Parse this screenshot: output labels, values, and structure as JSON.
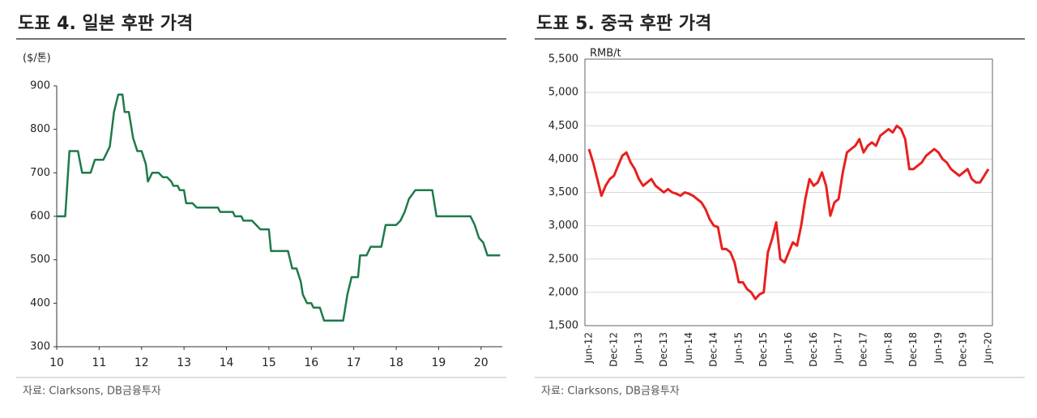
{
  "chart_data": [
    {
      "type": "line",
      "title": "도표 4. 일본 후판 가격",
      "y_label": "($/톤)",
      "source": "자료: Clarksons, DB금융투자",
      "xlim": [
        10,
        20.5
      ],
      "xticks": [
        10,
        11,
        12,
        13,
        14,
        15,
        16,
        17,
        18,
        19,
        20
      ],
      "ylim": [
        300,
        900
      ],
      "yticks": [
        300,
        400,
        500,
        600,
        700,
        800,
        900
      ],
      "grid": false,
      "series": [
        {
          "name": null,
          "color": "#1e7a4a",
          "x": [
            10,
            10.2,
            10.3,
            10.5,
            10.6,
            10.8,
            10.9,
            11.1,
            11.25,
            11.35,
            11.45,
            11.55,
            11.6,
            11.7,
            11.8,
            11.9,
            12.0,
            12.1,
            12.15,
            12.25,
            12.4,
            12.5,
            12.6,
            12.7,
            12.75,
            12.85,
            12.9,
            13.0,
            13.05,
            13.2,
            13.3,
            13.5,
            13.8,
            13.85,
            14.15,
            14.2,
            14.35,
            14.4,
            14.6,
            14.7,
            14.8,
            15.0,
            15.05,
            15.45,
            15.55,
            15.65,
            15.75,
            15.8,
            15.9,
            16.0,
            16.05,
            16.2,
            16.3,
            16.75,
            16.85,
            16.95,
            17.1,
            17.15,
            17.3,
            17.4,
            17.65,
            17.75,
            18.0,
            18.1,
            18.2,
            18.3,
            18.45,
            18.85,
            18.95,
            19.75,
            19.85,
            19.95,
            20.05,
            20.15,
            20.45
          ],
          "values": [
            600,
            600,
            750,
            750,
            700,
            700,
            730,
            730,
            760,
            840,
            880,
            880,
            840,
            840,
            780,
            750,
            750,
            720,
            680,
            700,
            700,
            690,
            690,
            680,
            670,
            670,
            660,
            660,
            630,
            630,
            620,
            620,
            620,
            610,
            610,
            600,
            600,
            590,
            590,
            580,
            570,
            570,
            520,
            520,
            480,
            480,
            450,
            420,
            400,
            400,
            390,
            390,
            360,
            360,
            420,
            460,
            460,
            510,
            510,
            530,
            530,
            580,
            580,
            590,
            610,
            640,
            660,
            660,
            600,
            600,
            580,
            550,
            540,
            510,
            510
          ]
        }
      ]
    },
    {
      "type": "line",
      "title": "도표 5. 중국 후판 가격",
      "y_label": "RMB/t",
      "source": "자료: Clarksons, DB금융투자",
      "categories": [
        "Jun-12",
        null,
        null,
        null,
        null,
        null,
        "Dec-12",
        null,
        null,
        null,
        null,
        null,
        "Jun-13",
        null,
        null,
        null,
        null,
        null,
        "Dec-13",
        null,
        null,
        null,
        null,
        null,
        "Jun-14",
        null,
        null,
        null,
        null,
        null,
        "Dec-14",
        null,
        null,
        null,
        null,
        null,
        "Jun-15",
        null,
        null,
        null,
        null,
        null,
        "Dec-15",
        null,
        null,
        null,
        null,
        null,
        "Jun-16",
        null,
        null,
        null,
        null,
        null,
        "Dec-16",
        null,
        null,
        null,
        null,
        null,
        "Jun-17",
        null,
        null,
        null,
        null,
        null,
        "Dec-17",
        null,
        null,
        null,
        null,
        null,
        "Jun-18",
        null,
        null,
        null,
        null,
        null,
        "Dec-18",
        null,
        null,
        null,
        null,
        null,
        "Jun-19",
        null,
        null,
        null,
        null,
        null,
        "Dec-19",
        null,
        null,
        null,
        null,
        null,
        "Jun-20"
      ],
      "ylim": [
        1500,
        5500
      ],
      "yticks": [
        {
          "value": 1500,
          "label": "1,500"
        },
        {
          "value": 2000,
          "label": "2,000"
        },
        {
          "value": 2500,
          "label": "2,500"
        },
        {
          "value": 3000,
          "label": "3,000"
        },
        {
          "value": 3500,
          "label": "3,500"
        },
        {
          "value": 4000,
          "label": "4,000"
        },
        {
          "value": 4500,
          "label": "4,500"
        },
        {
          "value": 5000,
          "label": "5,000"
        },
        {
          "value": 5500,
          "label": "5,500"
        }
      ],
      "grid": true,
      "series": [
        {
          "name": null,
          "color": "#e8201e",
          "values": [
            4150,
            3950,
            3700,
            3450,
            3600,
            3700,
            3750,
            3900,
            4050,
            4100,
            3950,
            3850,
            3700,
            3600,
            3650,
            3700,
            3600,
            3550,
            3500,
            3550,
            3500,
            3480,
            3450,
            3500,
            3480,
            3450,
            3400,
            3350,
            3250,
            3100,
            3000,
            2980,
            2650,
            2650,
            2600,
            2450,
            2150,
            2150,
            2050,
            2000,
            1900,
            1970,
            2000,
            2600,
            2800,
            3050,
            2500,
            2450,
            2600,
            2750,
            2700,
            3000,
            3400,
            3700,
            3600,
            3650,
            3800,
            3600,
            3150,
            3350,
            3400,
            3800,
            4100,
            4150,
            4200,
            4300,
            4100,
            4200,
            4250,
            4200,
            4350,
            4400,
            4450,
            4400,
            4500,
            4450,
            4300,
            3850,
            3850,
            3900,
            3950,
            4050,
            4100,
            4150,
            4100,
            4000,
            3950,
            3850,
            3800,
            3750,
            3800,
            3850,
            3700,
            3650,
            3650,
            3750,
            3850
          ]
        }
      ]
    }
  ]
}
